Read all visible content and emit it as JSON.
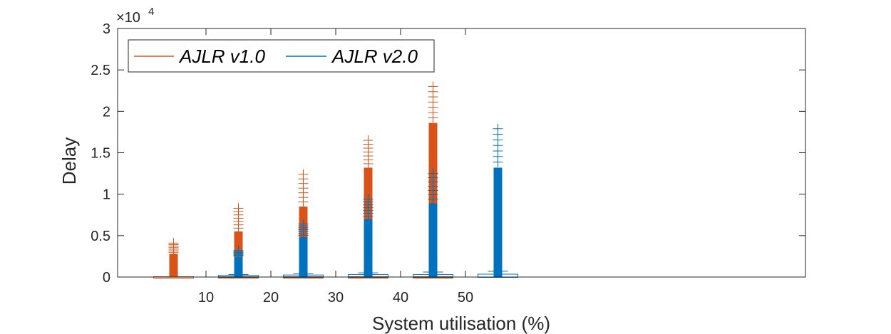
{
  "chart_data": {
    "type": "boxplot",
    "title": "",
    "xlabel": "System utilisation (%)",
    "ylabel": "Delay",
    "y_exponent_base": "×10",
    "y_exponent_power": "4",
    "categories": [
      10,
      20,
      30,
      40,
      50
    ],
    "ylim": [
      0,
      30000
    ],
    "yticks": [
      0,
      5000,
      10000,
      15000,
      20000,
      25000,
      30000
    ],
    "ytick_labels": [
      "0",
      "0.5",
      "1",
      "1.5",
      "2",
      "2.5",
      "3"
    ],
    "legend_position": "top-left",
    "series": [
      {
        "name": "AJLR v1.0",
        "color": "#D95319",
        "box_q1": [
          0,
          0,
          0,
          0,
          0
        ],
        "box_q3": [
          0,
          0,
          0,
          0,
          0
        ],
        "upper_whisker": [
          0,
          0,
          0,
          0,
          0
        ],
        "outliers_dense_from": [
          2800,
          5500,
          8500,
          13200,
          18600
        ],
        "outliers_max": [
          4100,
          8300,
          12400,
          16500,
          23000
        ]
      },
      {
        "name": "AJLR v2.0",
        "color": "#0072BD",
        "box_q1": [
          0,
          0,
          0,
          0,
          0
        ],
        "box_q3": [
          150,
          200,
          250,
          250,
          300
        ],
        "upper_whisker": [
          300,
          400,
          500,
          600,
          700
        ],
        "outliers_dense_from": [
          2400,
          4800,
          7000,
          8900,
          13200
        ],
        "outliers_max": [
          3200,
          6400,
          9400,
          12500,
          17900
        ]
      }
    ]
  }
}
